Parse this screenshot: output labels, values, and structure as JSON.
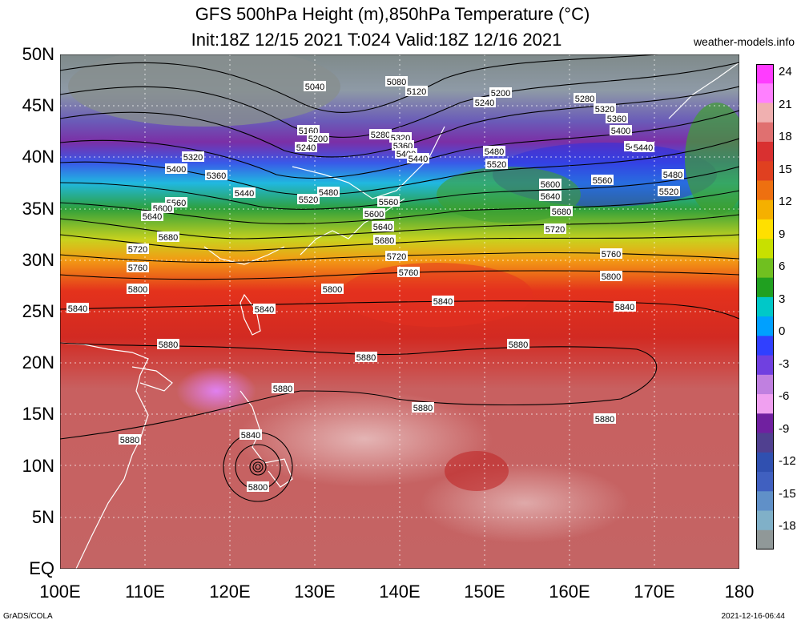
{
  "title_line1": "GFS 500hPa Height (m),850hPa Temperature (°C)",
  "title_line2": "Init:18Z 12/15 2021 T:024 Valid:18Z 12/16 2021",
  "credit": "weather-models.info",
  "footer_left": "GrADS/COLA",
  "footer_right": "2021-12-16-06:44",
  "lat_labels": [
    "50N",
    "45N",
    "40N",
    "35N",
    "30N",
    "25N",
    "20N",
    "15N",
    "10N",
    "5N",
    "EQ"
  ],
  "lon_labels": [
    "100E",
    "110E",
    "120E",
    "130E",
    "140E",
    "150E",
    "160E",
    "170E",
    "180"
  ],
  "colorbar_labels": [
    "24",
    "21",
    "18",
    "15",
    "12",
    "9",
    "6",
    "3",
    "0",
    "-3",
    "-6",
    "-9",
    "-12",
    "-15",
    "-18"
  ],
  "colorbar_colors": [
    "#ff3cff",
    "#ff80ff",
    "#f0b0b0",
    "#e07070",
    "#d93030",
    "#e04020",
    "#ee7010",
    "#f5b000",
    "#ffe000",
    "#c8e000",
    "#70c020",
    "#20a020",
    "#00c8c8",
    "#00a0ff",
    "#3040ff",
    "#7040e0",
    "#c080e0",
    "#f0a0f0",
    "#7020a0",
    "#504090",
    "#3050b0",
    "#4060c0",
    "#6090c8",
    "#80b0c8",
    "#909898"
  ],
  "contour_labels": [
    "5040",
    "5080",
    "5120",
    "5160",
    "5200",
    "5240",
    "5280",
    "5320",
    "5360",
    "5400",
    "5440",
    "5480",
    "5520",
    "5560",
    "5600",
    "5640",
    "5680",
    "5720",
    "5760",
    "5800",
    "5840",
    "5880"
  ]
}
